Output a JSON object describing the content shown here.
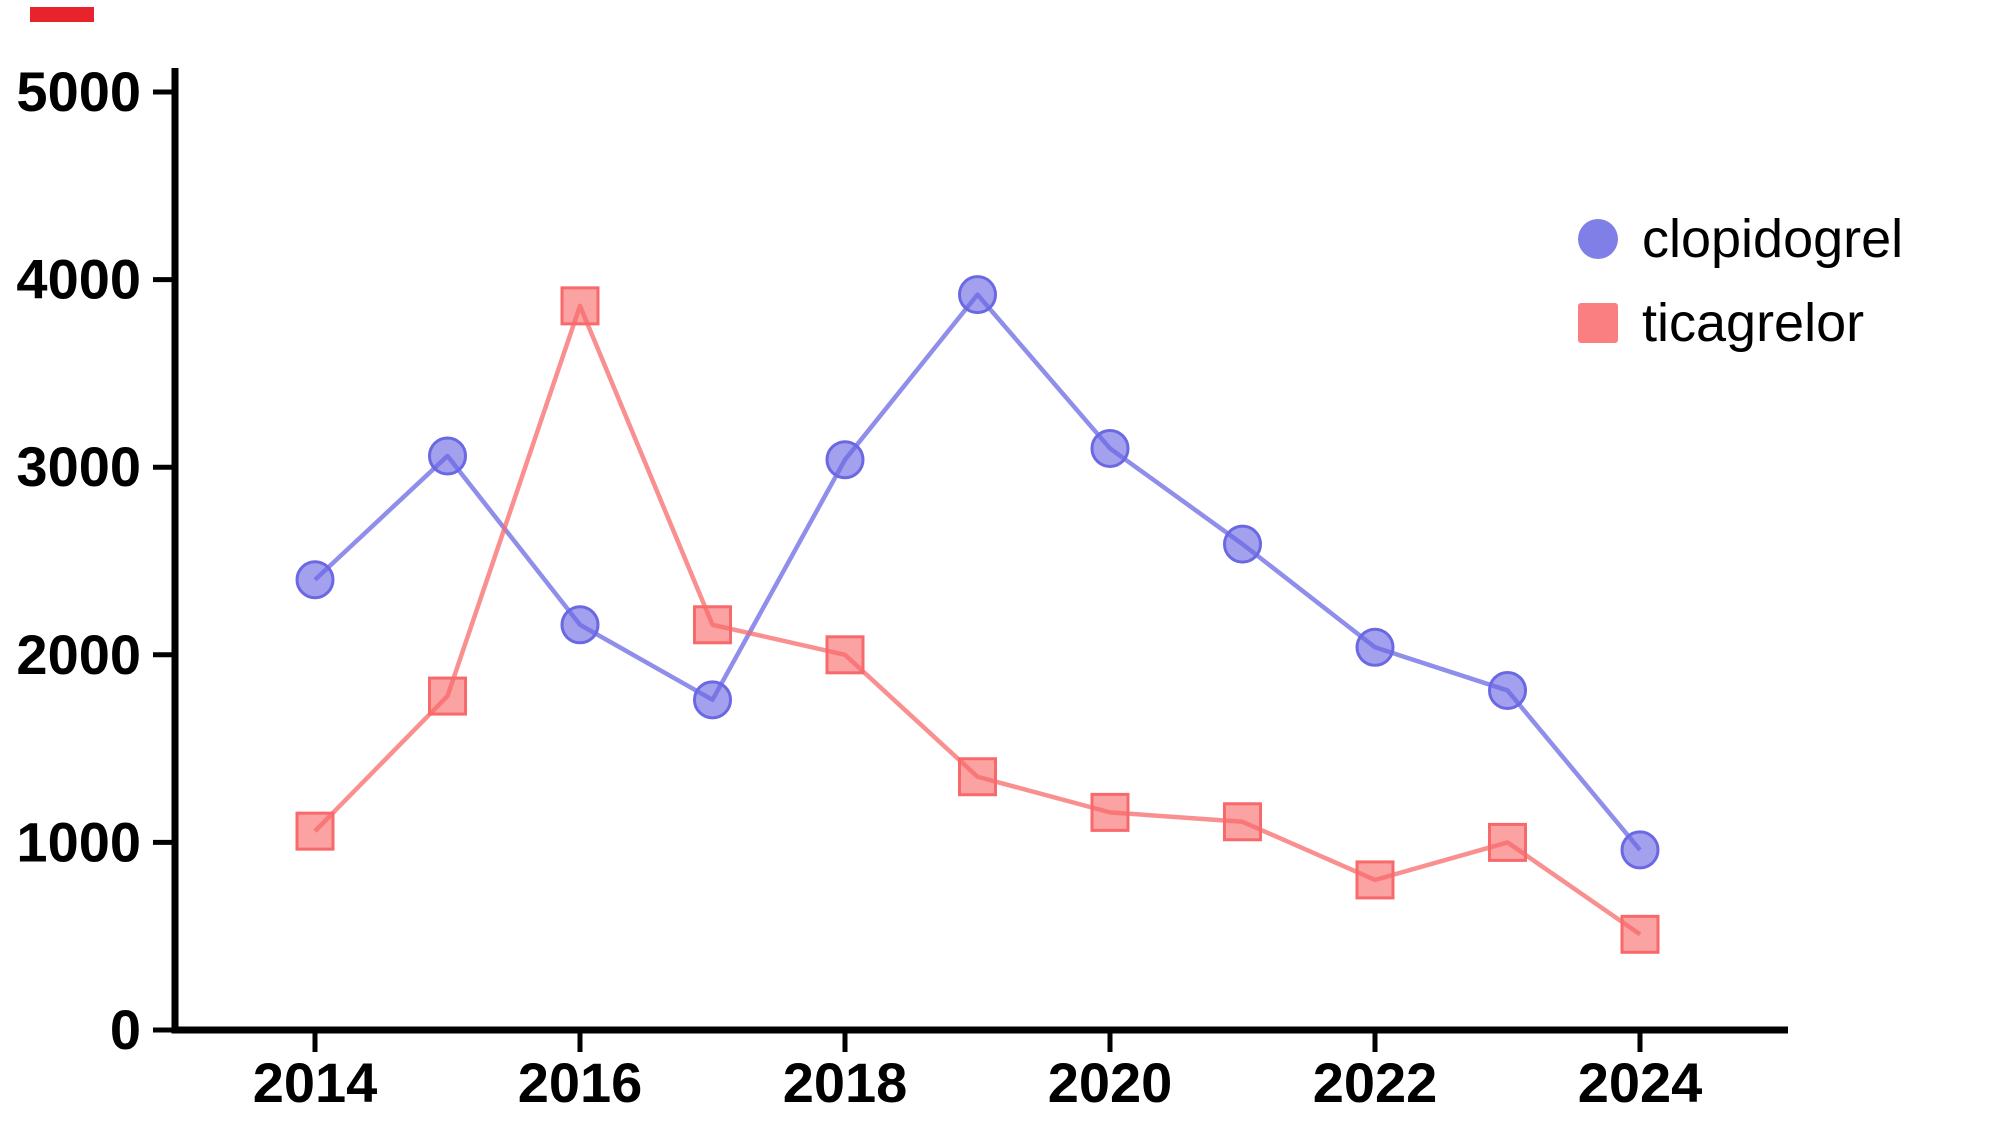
{
  "page": {
    "background": "#ffffff"
  },
  "top_left_mark": {
    "color": "#e7242b"
  },
  "chart_data": {
    "type": "line",
    "title": "",
    "xlabel": "",
    "ylabel": "",
    "grid": false,
    "legend_position": "top-right",
    "axis_color": "#000000",
    "tick_label_color": "#000000",
    "ylim": [
      0,
      5000
    ],
    "yticks": [
      0,
      1000,
      2000,
      3000,
      4000,
      5000
    ],
    "ytick_labels": [
      "0",
      "1000",
      "2000",
      "3000",
      "4000",
      "5000"
    ],
    "x": [
      2014,
      2015,
      2016,
      2017,
      2018,
      2019,
      2020,
      2021,
      2022,
      2023,
      2024
    ],
    "xticks": [
      2014,
      2016,
      2018,
      2020,
      2022,
      2024
    ],
    "xtick_labels": [
      "2014",
      "2016",
      "2018",
      "2020",
      "2022",
      "2024"
    ],
    "series": [
      {
        "name": "clopidogrel",
        "color": "#6a68e3",
        "marker": "circle",
        "values": [
          2400,
          3060,
          2160,
          1760,
          3040,
          3920,
          3100,
          2590,
          2040,
          1810,
          960
        ]
      },
      {
        "name": "ticagrelor",
        "color": "#f8696b",
        "marker": "square",
        "values": [
          1060,
          1780,
          3860,
          2160,
          2000,
          1350,
          1160,
          1110,
          800,
          1000,
          510
        ]
      }
    ]
  }
}
